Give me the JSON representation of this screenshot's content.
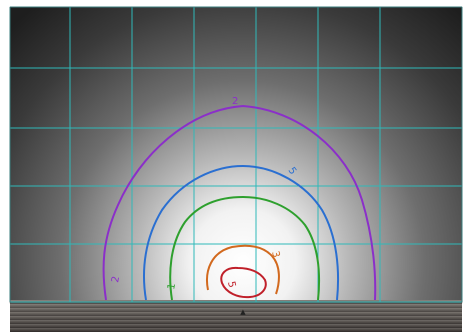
{
  "chart_data": {
    "type": "contour",
    "title": "",
    "xlabel": "",
    "ylabel": "",
    "grid": true,
    "grid_color": "#2fb9b9",
    "background": "radial-glow",
    "series": [
      {
        "label": "2",
        "color": "#8b2fc9"
      },
      {
        "label": "5",
        "color": "#2a6fd1"
      },
      {
        "label": "1",
        "color": "#2ea02e"
      },
      {
        "label": "3",
        "color": "#d2691e"
      },
      {
        "label": "5",
        "color": "#c0202a"
      }
    ]
  }
}
